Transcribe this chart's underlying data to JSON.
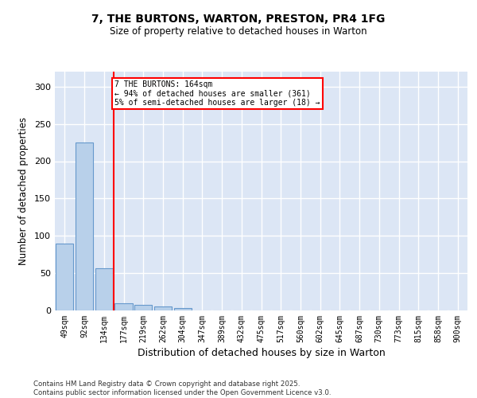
{
  "title": "7, THE BURTONS, WARTON, PRESTON, PR4 1FG",
  "subtitle": "Size of property relative to detached houses in Warton",
  "xlabel": "Distribution of detached houses by size in Warton",
  "ylabel": "Number of detached properties",
  "categories": [
    "49sqm",
    "92sqm",
    "134sqm",
    "177sqm",
    "219sqm",
    "262sqm",
    "304sqm",
    "347sqm",
    "389sqm",
    "432sqm",
    "475sqm",
    "517sqm",
    "560sqm",
    "602sqm",
    "645sqm",
    "687sqm",
    "730sqm",
    "773sqm",
    "815sqm",
    "858sqm",
    "900sqm"
  ],
  "values": [
    90,
    225,
    57,
    10,
    8,
    5,
    3,
    0,
    0,
    0,
    0,
    0,
    0,
    0,
    0,
    0,
    0,
    0,
    0,
    0,
    0
  ],
  "bar_color": "#b8d0ea",
  "bar_edge_color": "#6699cc",
  "red_line_x": 2.5,
  "annotation_text": "7 THE BURTONS: 164sqm\n← 94% of detached houses are smaller (361)\n5% of semi-detached houses are larger (18) →",
  "ylim": [
    0,
    320
  ],
  "yticks": [
    0,
    50,
    100,
    150,
    200,
    250,
    300
  ],
  "background_color": "#dce6f5",
  "grid_color": "#ffffff",
  "footer_line1": "Contains HM Land Registry data © Crown copyright and database right 2025.",
  "footer_line2": "Contains public sector information licensed under the Open Government Licence v3.0."
}
